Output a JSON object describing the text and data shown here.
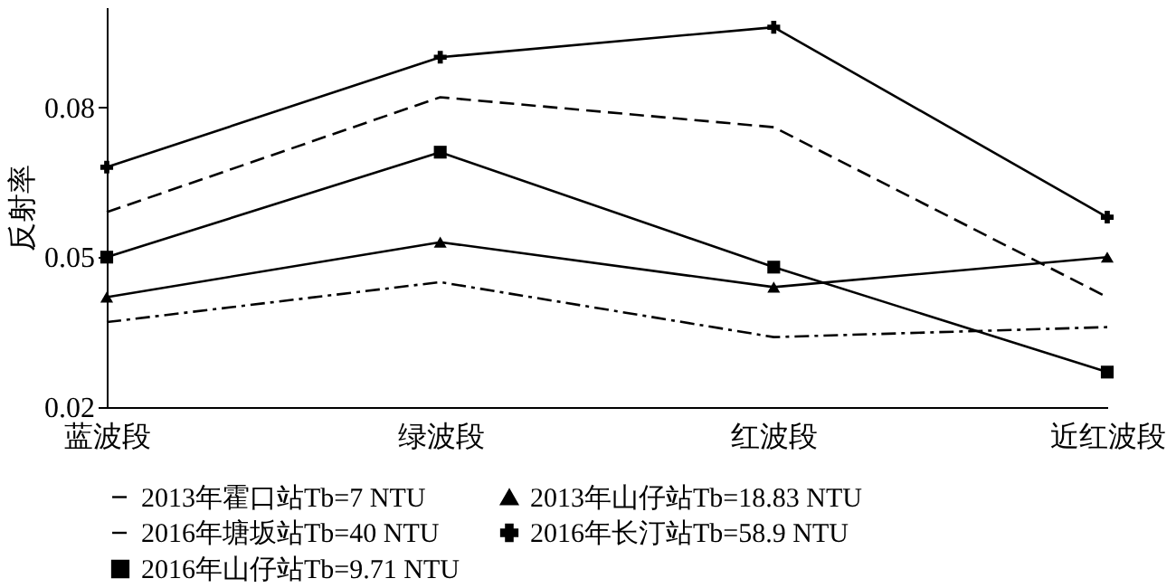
{
  "chart_data": {
    "type": "line",
    "ylabel": "反射率",
    "categories": [
      "蓝波段",
      "绿波段",
      "红波段",
      "近红波段"
    ],
    "ylim": [
      0.02,
      0.1
    ],
    "yticks": [
      0.02,
      0.05,
      0.08
    ],
    "grid": false,
    "legend": "bottom",
    "series": [
      {
        "name": "2013年霍口站Tb=7 NTU",
        "color": "#000000",
        "line_style": "dashdot",
        "marker": "none",
        "values": [
          0.037,
          0.045,
          0.034,
          0.036
        ]
      },
      {
        "name": "2013年山仔站Tb=18.83 NTU",
        "color": "#000000",
        "line_style": "solid",
        "marker": "triangle",
        "values": [
          0.042,
          0.053,
          0.044,
          0.05
        ]
      },
      {
        "name": "2016年塘坂站Tb=40 NTU",
        "color": "#000000",
        "line_style": "dashed",
        "marker": "none",
        "values": [
          0.059,
          0.082,
          0.076,
          0.042
        ]
      },
      {
        "name": "2016年长汀站Tb=58.9 NTU",
        "color": "#000000",
        "line_style": "solid",
        "marker": "cross",
        "values": [
          0.068,
          0.09,
          0.096,
          0.058
        ]
      },
      {
        "name": "2016年山仔站Tb=9.71 NTU",
        "color": "#000000",
        "line_style": "solid",
        "marker": "square",
        "values": [
          0.05,
          0.071,
          0.048,
          0.027
        ]
      }
    ]
  }
}
